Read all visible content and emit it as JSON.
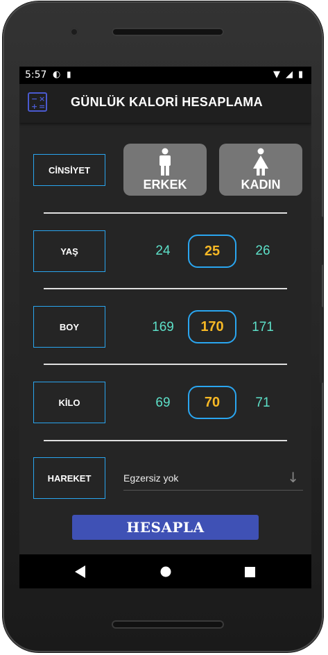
{
  "status": {
    "time": "5:57"
  },
  "app": {
    "title": "GÜNLÜK KALORİ HESAPLAMA",
    "icon": "calculator-icon"
  },
  "gender": {
    "label": "CİNSİYET",
    "male": {
      "label": "ERKEK",
      "icon": "male-figure-icon"
    },
    "female": {
      "label": "KADIN",
      "icon": "female-figure-icon"
    }
  },
  "age": {
    "label": "YAŞ",
    "prev": "24",
    "selected": "25",
    "next": "26"
  },
  "height": {
    "label": "BOY",
    "prev": "169",
    "selected": "170",
    "next": "171"
  },
  "weight": {
    "label": "KİLO",
    "prev": "69",
    "selected": "70",
    "next": "71"
  },
  "activity": {
    "label": "HAREKET",
    "selected": "Egzersiz yok"
  },
  "calculate": {
    "label": "HESAPLA"
  },
  "colors": {
    "accent": "#2aa6f0",
    "selected_value": "#f7b825",
    "values": "#5de0c8",
    "button": "#3f51b5",
    "gender_button": "#767676"
  }
}
